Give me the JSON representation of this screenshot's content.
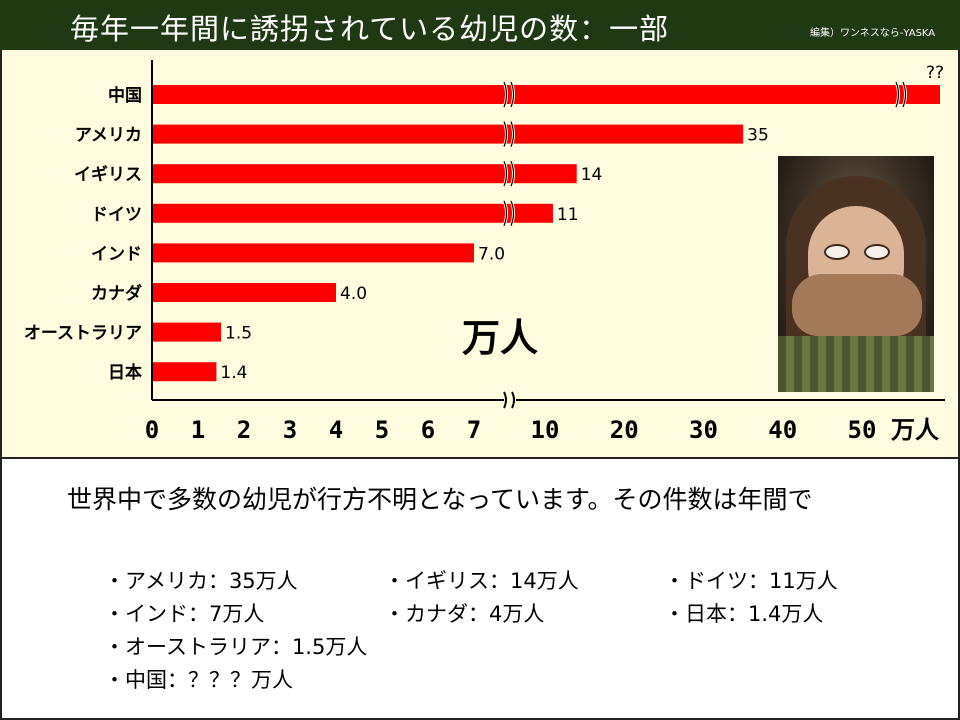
{
  "title": "毎年一年間に誘拐されている幼児の数：一部",
  "credit": "編集）ワンネスなら-YASKA",
  "chart_data": {
    "type": "bar",
    "orientation": "horizontal",
    "title": "毎年一年間に誘拐されている幼児の数：一部",
    "categories": [
      "中国",
      "アメリカ",
      "イギリス",
      "ドイツ",
      "インド",
      "カナダ",
      "オーストラリア",
      "日本"
    ],
    "values": [
      null,
      35,
      14,
      11,
      7.0,
      4.0,
      1.5,
      1.4
    ],
    "value_labels": [
      "??",
      "35",
      "14",
      "11",
      "7.0",
      "4.0",
      "1.5",
      "1.4"
    ],
    "unit": "万人",
    "axis_note": "broken axis: linear 0–7, then 10–50",
    "x_ticks": [
      "0",
      "1",
      "2",
      "3",
      "4",
      "5",
      "6",
      "7",
      "10",
      "20",
      "30",
      "40",
      "50"
    ],
    "x_unit_label": "万人",
    "bar_color": "#ff0000",
    "grid": false,
    "legend": "none"
  },
  "big_unit_label": "万人",
  "photo": {
    "icon": "child-photo"
  },
  "text": {
    "intro": "世界中で多数の幼児が行方不明となっています。その件数は年間で",
    "bullets": [
      "・アメリカ：35万人",
      "・イギリス：14万人",
      "・ドイツ：11万人",
      "・インド：7万人",
      "・カナダ：4万人",
      "・日本：1.4万人",
      "・オーストラリア：1.5万人",
      "・中国：？？？万人"
    ]
  },
  "colors": {
    "title_bg": "#1f3a12",
    "panel_bg": "#fffbdf",
    "bar": "#ff0000"
  }
}
